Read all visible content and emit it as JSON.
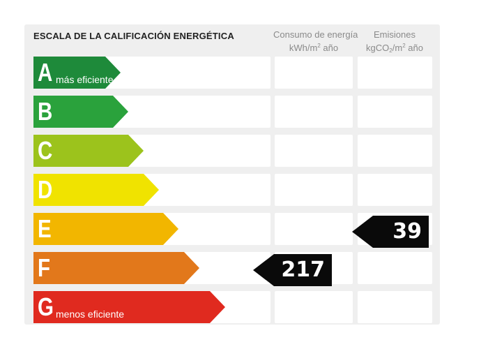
{
  "title": "ESCALA DE LA CALIFICACIÓN ENERGÉTICA",
  "columns": {
    "consumo": {
      "line1": "Consumo de energía",
      "line2_main": "kWh/m",
      "line2_sup": "2",
      "line2_end": " año"
    },
    "emisiones": {
      "line1": "Emisiones",
      "line2_main": "kgCO",
      "line2_sub": "2",
      "line2_mid": "/m",
      "line2_sup": "2",
      "line2_end": " año"
    }
  },
  "ratings": [
    {
      "letter": "A",
      "label": "más eficiente",
      "color": "#1e8a3a"
    },
    {
      "letter": "B",
      "label": "",
      "color": "#2aa23c"
    },
    {
      "letter": "C",
      "label": "",
      "color": "#9cc31c"
    },
    {
      "letter": "D",
      "label": "",
      "color": "#f0e300"
    },
    {
      "letter": "E",
      "label": "",
      "color": "#f2b600"
    },
    {
      "letter": "F",
      "label": "",
      "color": "#e2781b"
    },
    {
      "letter": "G",
      "label": "menos eficiente",
      "color": "#e02a1f"
    }
  ],
  "consumo_value": {
    "value": "217",
    "rating": "F"
  },
  "emisiones_value": {
    "value": "39",
    "rating": "E"
  }
}
